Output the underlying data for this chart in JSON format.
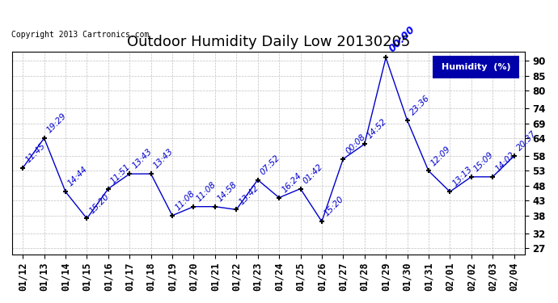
{
  "title": "Outdoor Humidity Daily Low 20130205",
  "copyright_text": "Copyright 2013 Cartronics.com",
  "legend_label": "Humidity  (%)",
  "x_labels": [
    "01/12",
    "01/13",
    "01/14",
    "01/15",
    "01/16",
    "01/17",
    "01/18",
    "01/19",
    "01/20",
    "01/21",
    "01/22",
    "01/23",
    "01/24",
    "01/25",
    "01/26",
    "01/27",
    "01/28",
    "01/29",
    "01/30",
    "01/31",
    "02/01",
    "02/02",
    "02/03",
    "02/04"
  ],
  "y_values": [
    54,
    64,
    46,
    37,
    47,
    52,
    52,
    38,
    41,
    41,
    40,
    50,
    44,
    47,
    36,
    57,
    62,
    91,
    70,
    53,
    46,
    51,
    51,
    58
  ],
  "time_labels": [
    "11:45",
    "19:29",
    "14:44",
    "15:20",
    "11:51",
    "13:43",
    "13:43",
    "11:08",
    "11:08",
    "14:58",
    "13:42",
    "07:52",
    "16:24",
    "01:42",
    "15:20",
    "00:08",
    "14:52",
    "00:00",
    "23:36",
    "12:09",
    "13:13",
    "15:09",
    "14:02",
    "20:37"
  ],
  "y_ticks": [
    27,
    32,
    38,
    43,
    48,
    53,
    58,
    64,
    69,
    74,
    80,
    85,
    90
  ],
  "ylim": [
    25,
    93
  ],
  "xlim": [
    -0.5,
    23.5
  ],
  "line_color": "#0000cc",
  "annotation_color": "#0000cc",
  "bg_color": "#ffffff",
  "grid_color": "#c0c0c0",
  "title_fontsize": 13,
  "tick_fontsize": 8.5,
  "annotation_fontsize": 7.5,
  "legend_bg": "#0000aa",
  "legend_fg": "#ffffff"
}
